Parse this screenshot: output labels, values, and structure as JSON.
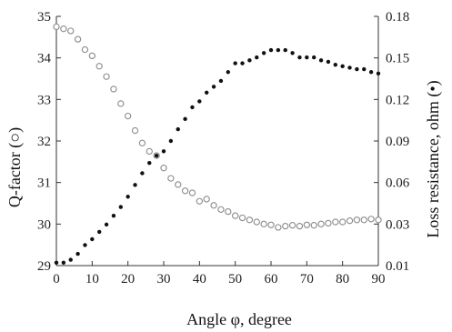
{
  "chart_data": {
    "type": "scatter",
    "xlabel": "Angle φ, degree",
    "ylabel_left": "Q-factor (○)",
    "ylabel_right": "Loss resistance, ohm (•)",
    "xlim": [
      0,
      90
    ],
    "ylim_left": [
      29,
      35
    ],
    "ylim_right": [
      0.01,
      0.18
    ],
    "x_ticks": [
      "0",
      "10",
      "20",
      "30",
      "40",
      "50",
      "60",
      "70",
      "80",
      "90"
    ],
    "y_left_ticks": [
      "29",
      "30",
      "31",
      "32",
      "33",
      "34",
      "35"
    ],
    "y_right_ticks": [
      "0.01",
      "0.03",
      "0.06",
      "0.09",
      "0.12",
      "0.15",
      "0.18"
    ],
    "grid": false,
    "series": [
      {
        "name": "Q-factor (○)",
        "axis": "left",
        "marker": "open-circle",
        "color": "#8a8a8a",
        "x": [
          0,
          2,
          4,
          6,
          8,
          10,
          12,
          14,
          16,
          18,
          20,
          22,
          24,
          26,
          28,
          30,
          32,
          34,
          36,
          38,
          40,
          42,
          44,
          46,
          48,
          50,
          52,
          54,
          56,
          58,
          60,
          62,
          64,
          66,
          68,
          70,
          72,
          74,
          76,
          78,
          80,
          82,
          84,
          86,
          88,
          90
        ],
        "y": [
          34.75,
          34.7,
          34.65,
          34.45,
          34.2,
          34.05,
          33.8,
          33.55,
          33.25,
          32.9,
          32.6,
          32.25,
          31.95,
          31.75,
          31.65,
          31.35,
          31.1,
          30.95,
          30.8,
          30.75,
          30.55,
          30.6,
          30.45,
          30.35,
          30.3,
          30.2,
          30.15,
          30.1,
          30.05,
          30.0,
          29.98,
          29.92,
          29.95,
          29.97,
          29.95,
          29.98,
          29.97,
          30.0,
          30.02,
          30.05,
          30.05,
          30.08,
          30.1,
          30.1,
          30.12,
          30.1
        ]
      },
      {
        "name": "Loss resistance, ohm (•)",
        "axis": "right",
        "marker": "filled-dot",
        "color": "#111111",
        "x": [
          0,
          2,
          4,
          6,
          8,
          10,
          12,
          14,
          16,
          18,
          20,
          22,
          24,
          26,
          28,
          30,
          32,
          34,
          36,
          38,
          40,
          42,
          44,
          46,
          48,
          50,
          52,
          54,
          56,
          58,
          60,
          62,
          64,
          66,
          68,
          70,
          72,
          74,
          76,
          78,
          80,
          82,
          84,
          86,
          88,
          90
        ],
        "y": [
          0.012,
          0.012,
          0.014,
          0.018,
          0.024,
          0.028,
          0.033,
          0.038,
          0.044,
          0.05,
          0.057,
          0.065,
          0.073,
          0.08,
          0.085,
          0.088,
          0.095,
          0.103,
          0.11,
          0.118,
          0.122,
          0.128,
          0.132,
          0.136,
          0.142,
          0.148,
          0.148,
          0.15,
          0.152,
          0.155,
          0.157,
          0.157,
          0.157,
          0.155,
          0.152,
          0.152,
          0.152,
          0.15,
          0.149,
          0.147,
          0.146,
          0.145,
          0.144,
          0.144,
          0.142,
          0.141
        ]
      }
    ]
  }
}
